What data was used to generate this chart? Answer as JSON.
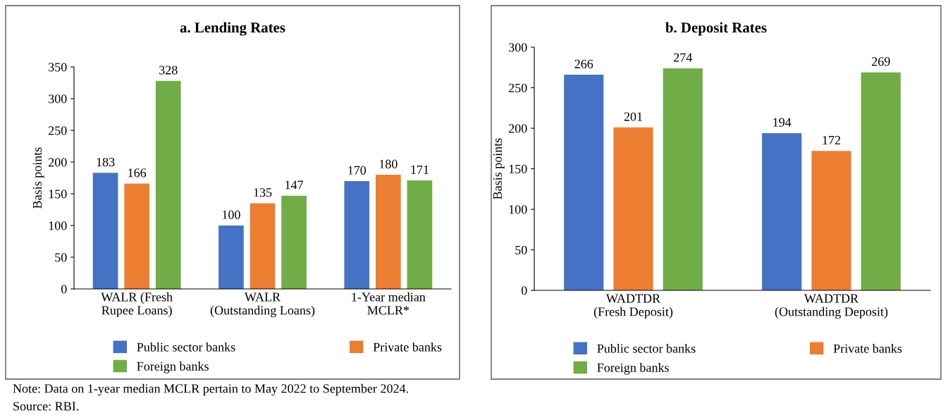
{
  "chart_data": [
    {
      "type": "bar",
      "title": "a. Lending Rates",
      "ylabel": "Basis points",
      "categories": [
        "WALR (Fresh\nRupee Loans)",
        "WALR\n(Outstanding Loans)",
        "1-Year median\nMCLR*"
      ],
      "series": [
        {
          "name": "Public sector banks",
          "color": "#4472c4",
          "values": [
            183,
            100,
            170
          ]
        },
        {
          "name": "Private banks",
          "color": "#ed7d31",
          "values": [
            166,
            135,
            180
          ]
        },
        {
          "name": "Foreign banks",
          "color": "#70ad47",
          "values": [
            328,
            147,
            171
          ]
        }
      ],
      "ylim": [
        0,
        350
      ],
      "yticks": [
        0,
        50,
        100,
        150,
        200,
        250,
        300,
        350
      ],
      "grid": false,
      "legend": "bottom",
      "data_labels": true,
      "annotations": [
        "Note: Data on 1-year median MCLR pertain to May 2022 to September 2024.",
        "Source: RBI."
      ]
    },
    {
      "type": "bar",
      "title": "b. Deposit Rates",
      "ylabel": "Basis points",
      "categories": [
        "WADTDR\n(Fresh Deposit)",
        "WADTDR\n(Outstanding Deposit)"
      ],
      "series": [
        {
          "name": "Public sector banks",
          "color": "#4472c4",
          "values": [
            266,
            194
          ]
        },
        {
          "name": "Private banks",
          "color": "#ed7d31",
          "values": [
            201,
            172
          ]
        },
        {
          "name": "Foreign banks",
          "color": "#70ad47",
          "values": [
            274,
            269
          ]
        }
      ],
      "ylim": [
        0,
        300
      ],
      "yticks": [
        0,
        50,
        100,
        150,
        200,
        250,
        300
      ],
      "grid": false,
      "legend": "bottom",
      "data_labels": true
    }
  ]
}
